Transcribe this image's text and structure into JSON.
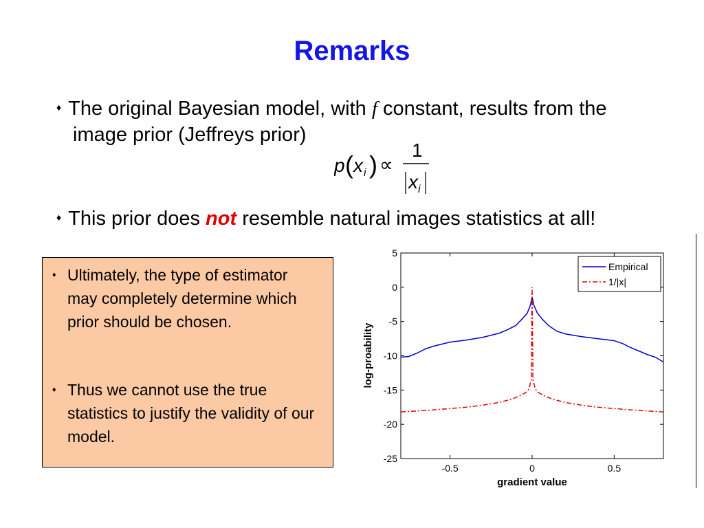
{
  "slide": {
    "title": "Remarks",
    "bullet1": {
      "part1": "The original Bayesian model, with",
      "f": "f",
      "part2": "constant,  results from the",
      "line2": "image prior (Jeffreys prior)"
    },
    "formula": {
      "p": "p",
      "x": "x",
      "i": "i",
      "prop": "∝",
      "one": "1"
    },
    "bullet2": {
      "part1": "This prior does",
      "not": "not",
      "part2": "resemble natural images statistics at all!"
    },
    "box": {
      "item1": "Ultimately, the type of estimator may completely determine which prior should be chosen.",
      "item2": "Thus we cannot use the true statistics to justify the validity of our model."
    }
  },
  "colors": {
    "title": "#1515e6",
    "box_fill": "#fcc9a5",
    "empirical": "#0000cc",
    "jeffreys": "#e00000",
    "emphasis": "#e00000"
  },
  "chart_data": {
    "type": "line",
    "xlabel": "gradient value",
    "ylabel": "log-proability",
    "xlim": [
      -0.8,
      0.8
    ],
    "ylim": [
      -25,
      5
    ],
    "x_ticks": [
      -0.5,
      0,
      0.5
    ],
    "x_tick_labels": [
      "-0.5",
      "0",
      "0.5"
    ],
    "y_ticks": [
      5,
      0,
      -5,
      -10,
      -15,
      -20,
      -25
    ],
    "y_tick_labels": [
      "5",
      "0",
      "-5",
      "-10",
      "-15",
      "-20",
      "-25"
    ],
    "legend_position": "top-right",
    "series": [
      {
        "name": "Empirical",
        "style": "solid",
        "x": [
          -0.8,
          -0.75,
          -0.7,
          -0.65,
          -0.6,
          -0.5,
          -0.4,
          -0.3,
          -0.2,
          -0.15,
          -0.1,
          -0.06,
          -0.03,
          -0.01,
          0,
          0.01,
          0.03,
          0.06,
          0.1,
          0.15,
          0.2,
          0.3,
          0.4,
          0.5,
          0.55,
          0.6,
          0.65,
          0.7,
          0.75,
          0.8
        ],
        "y": [
          -10.2,
          -10.1,
          -9.6,
          -9.0,
          -8.6,
          -8.0,
          -7.7,
          -7.3,
          -6.7,
          -6.2,
          -5.6,
          -4.6,
          -3.8,
          -2.6,
          -1.4,
          -2.6,
          -3.7,
          -4.6,
          -5.6,
          -6.4,
          -6.8,
          -7.2,
          -7.5,
          -7.8,
          -8.2,
          -8.8,
          -9.3,
          -9.8,
          -10.2,
          -10.9
        ]
      },
      {
        "name": "1/|x|",
        "style": "dash-dot",
        "x": [
          -0.8,
          -0.6,
          -0.4,
          -0.3,
          -0.2,
          -0.12,
          -0.08,
          -0.04,
          -0.02,
          -0.005,
          0,
          0.005,
          0.02,
          0.04,
          0.08,
          0.12,
          0.2,
          0.3,
          0.4,
          0.6,
          0.8
        ],
        "y": [
          -18.2,
          -17.9,
          -17.5,
          -17.2,
          -16.8,
          -16.3,
          -15.9,
          -15.4,
          -14.9,
          -13.5,
          0.0,
          -13.5,
          -14.9,
          -15.4,
          -15.9,
          -16.3,
          -16.8,
          -17.2,
          -17.5,
          -17.9,
          -18.2
        ]
      }
    ]
  }
}
